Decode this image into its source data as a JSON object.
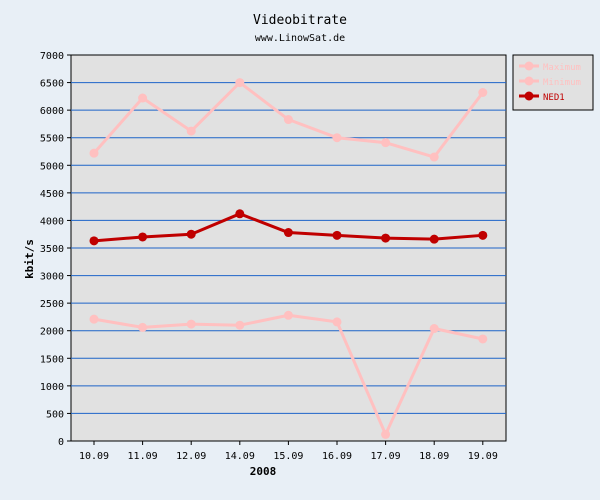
{
  "chart_data": {
    "type": "line",
    "title": "Videobitrate",
    "subtitle": "www.LinowSat.de",
    "xlabel": "2008",
    "ylabel": "kbit/s",
    "categories": [
      "10.09",
      "11.09",
      "12.09",
      "14.09",
      "15.09",
      "16.09",
      "17.09",
      "18.09",
      "19.09"
    ],
    "ylim": [
      0,
      7000
    ],
    "yticks": [
      0,
      500,
      1000,
      1500,
      2000,
      2500,
      3000,
      3500,
      4000,
      4500,
      5000,
      5500,
      6000,
      6500,
      7000
    ],
    "grid": true,
    "legend_position": "top-right",
    "series": [
      {
        "name": "Maximum",
        "color": "#ffc0c0",
        "values": [
          5220,
          6220,
          5620,
          6500,
          5830,
          5500,
          5410,
          5150,
          6320
        ]
      },
      {
        "name": "Minimum",
        "color": "#ffc0c0",
        "values": [
          2210,
          2060,
          2120,
          2100,
          2280,
          2160,
          120,
          2040,
          1850
        ]
      },
      {
        "name": "NED1",
        "color": "#c00000",
        "values": [
          3630,
          3700,
          3750,
          4120,
          3780,
          3730,
          3680,
          3660,
          3730
        ]
      }
    ]
  }
}
